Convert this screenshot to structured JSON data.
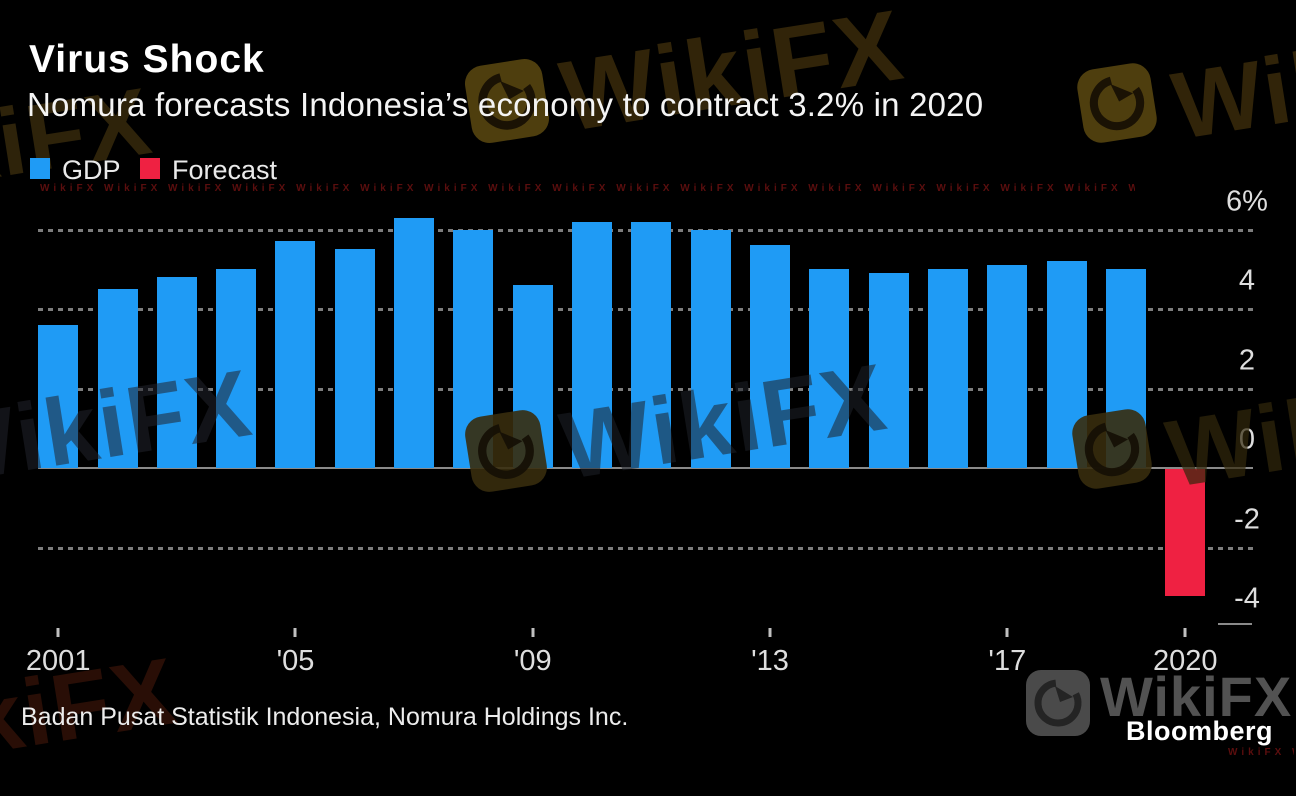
{
  "header": {
    "title": "Virus Shock",
    "subtitle": "Nomura forecasts Indonesia’s economy to contract 3.2% in 2020"
  },
  "legend": [
    {
      "label": "GDP",
      "color": "#1f9bf5"
    },
    {
      "label": "Forecast",
      "color": "#ef2142"
    }
  ],
  "chart_data": {
    "type": "bar",
    "title": "Virus Shock",
    "subtitle": "Nomura forecasts Indonesia’s economy to contract 3.2% in 2020",
    "unit": "%",
    "ylim": [
      -4,
      6
    ],
    "grid": "horizontal dotted at 6, 4, 2, -2; solid zero line; grid on",
    "legend_position": "top-left",
    "categories": [
      2001,
      2002,
      2003,
      2004,
      2005,
      2006,
      2007,
      2008,
      2009,
      2010,
      2011,
      2012,
      2013,
      2014,
      2015,
      2016,
      2017,
      2018,
      2019,
      2020
    ],
    "series": [
      {
        "name": "GDP",
        "color": "#1f9bf5",
        "values": [
          3.6,
          4.5,
          4.8,
          5.0,
          5.7,
          5.5,
          6.3,
          6.0,
          4.6,
          6.2,
          6.2,
          6.0,
          5.6,
          5.0,
          4.9,
          5.0,
          5.1,
          5.2,
          5.0,
          null
        ]
      },
      {
        "name": "Forecast",
        "color": "#ef2142",
        "values": [
          null,
          null,
          null,
          null,
          null,
          null,
          null,
          null,
          null,
          null,
          null,
          null,
          null,
          null,
          null,
          null,
          null,
          null,
          null,
          -3.2
        ]
      }
    ],
    "yticks": [
      {
        "value": 6,
        "label": "6%"
      },
      {
        "value": 4,
        "label": "4"
      },
      {
        "value": 2,
        "label": "2"
      },
      {
        "value": 0,
        "label": "0"
      },
      {
        "value": -2,
        "label": "-2"
      },
      {
        "value": -4,
        "label": "-4"
      }
    ],
    "xticks": [
      {
        "year": 2001,
        "label": "2001"
      },
      {
        "year": 2005,
        "label": "'05"
      },
      {
        "year": 2009,
        "label": "'09"
      },
      {
        "year": 2013,
        "label": "'13"
      },
      {
        "year": 2017,
        "label": "'17"
      },
      {
        "year": 2020,
        "label": "2020"
      }
    ]
  },
  "source": "Badan Pusat Statistik Indonesia, Nomura Holdings Inc.",
  "branding": {
    "bloomberg": "Bloomberg",
    "watermark": "WikiFX"
  }
}
